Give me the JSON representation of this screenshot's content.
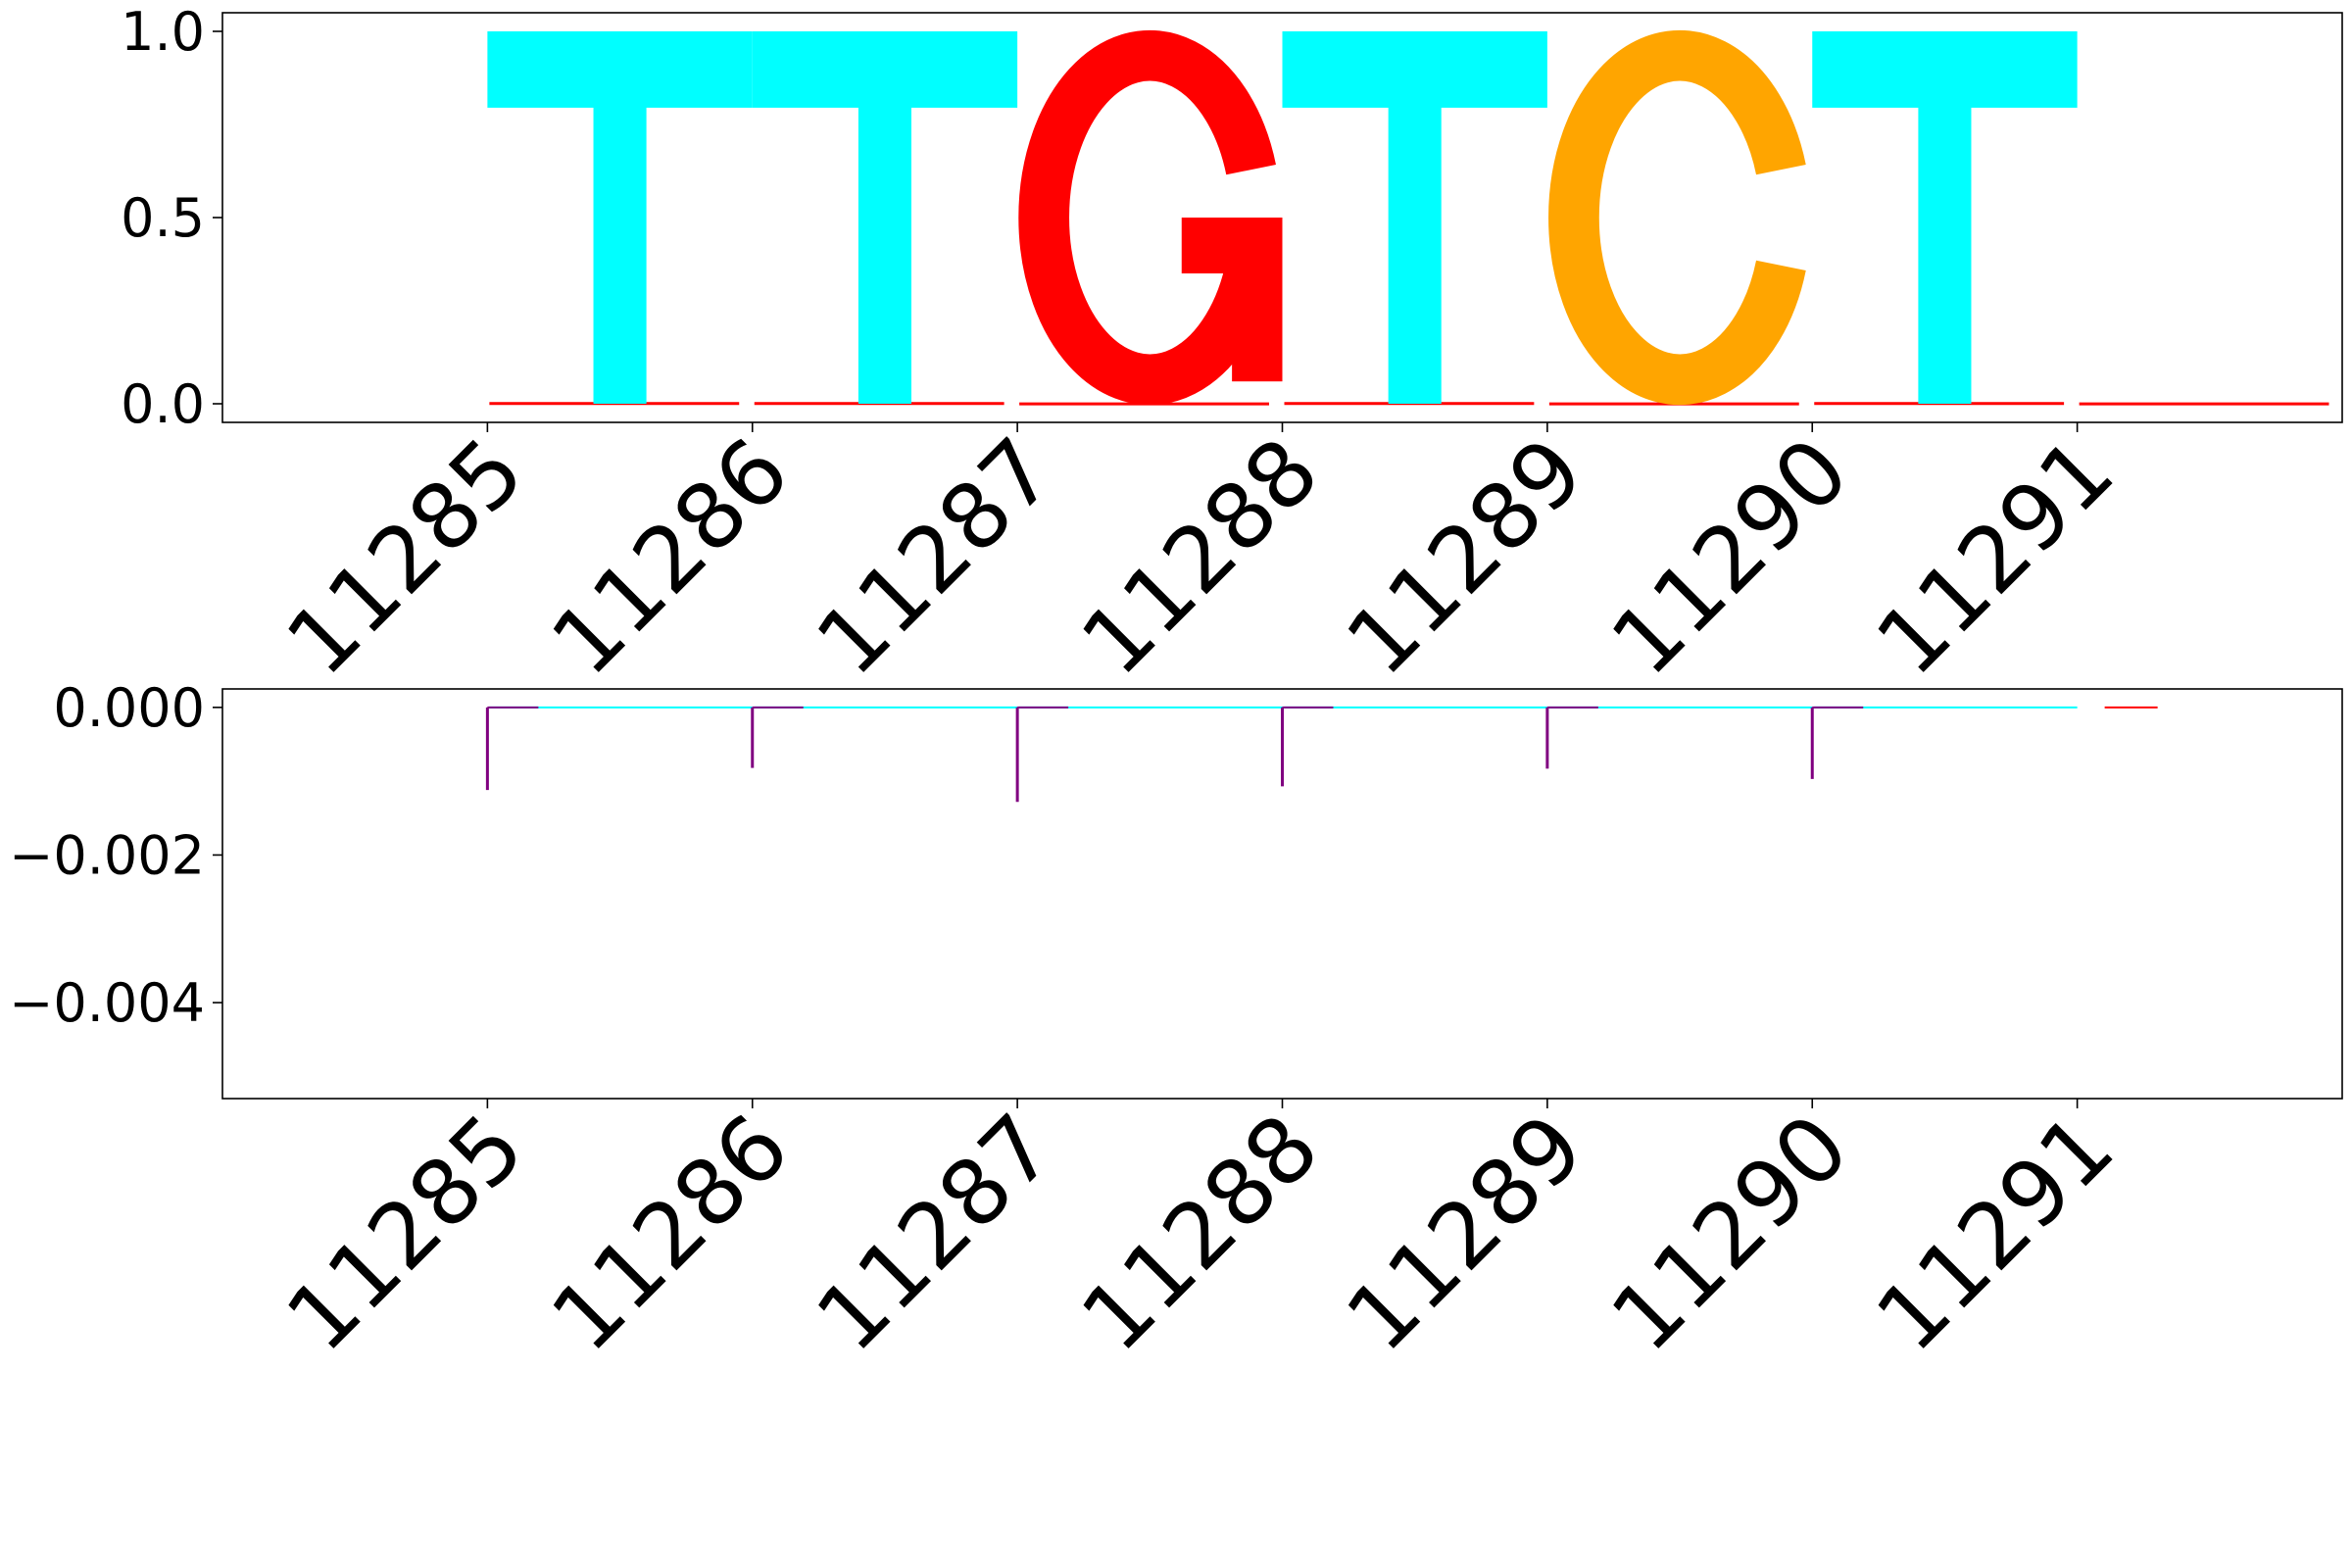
{
  "chart_data": [
    {
      "type": "sequence-logo",
      "title": "",
      "xlabel": "",
      "ylabel": "",
      "ylim": [
        -0.05,
        1.05
      ],
      "xlim": [
        11284,
        11292
      ],
      "x_ticks": [
        11285,
        11286,
        11287,
        11288,
        11289,
        11290,
        11291
      ],
      "y_ticks": [
        {
          "value": 0.0,
          "label": "0.0"
        },
        {
          "value": 0.5,
          "label": "0.5"
        },
        {
          "value": 1.0,
          "label": "1.0"
        }
      ],
      "letter_colors": {
        "A": "#008000",
        "C": "#ffa500",
        "G": "#ff0000",
        "T": "#00ffff"
      },
      "letters": [
        {
          "x": 11285,
          "letter": "T",
          "height": 1.0
        },
        {
          "x": 11286,
          "letter": "T",
          "height": 1.0
        },
        {
          "x": 11287,
          "letter": "G",
          "height": 1.0
        },
        {
          "x": 11288,
          "letter": "T",
          "height": 1.0
        },
        {
          "x": 11289,
          "letter": "C",
          "height": 1.0
        },
        {
          "x": 11290,
          "letter": "T",
          "height": 1.0
        }
      ],
      "baseline_traces": [
        {
          "x": 11285,
          "color": "#ff0000",
          "value": 0.002
        },
        {
          "x": 11286,
          "color": "#ff0000",
          "value": 0.002
        },
        {
          "x": 11287,
          "color": "#ff0000",
          "value": 0.001
        },
        {
          "x": 11288,
          "color": "#ff0000",
          "value": 0.002
        },
        {
          "x": 11289,
          "color": "#ff0000",
          "value": 0.001
        },
        {
          "x": 11290,
          "color": "#ff0000",
          "value": 0.002
        },
        {
          "x": 11291,
          "color": "#ff0000",
          "value": 0.001
        }
      ]
    },
    {
      "type": "bar",
      "title": "",
      "xlabel": "",
      "ylabel": "",
      "ylim": [
        -0.0053,
        0.00025
      ],
      "xlim": [
        11284,
        11292
      ],
      "x_ticks": [
        11285,
        11286,
        11287,
        11288,
        11289,
        11290,
        11291
      ],
      "y_ticks": [
        {
          "value": 0.0,
          "label": "0.000"
        },
        {
          "value": -0.002,
          "label": "−0.002"
        },
        {
          "value": -0.004,
          "label": "−0.004"
        }
      ],
      "bar_color": "#800080",
      "line_color": "#00ffff",
      "bars": [
        {
          "x": 11285,
          "value": -0.00112
        },
        {
          "x": 11286,
          "value": -0.00082
        },
        {
          "x": 11287,
          "value": -0.00128
        },
        {
          "x": 11288,
          "value": -0.00107
        },
        {
          "x": 11289,
          "value": -0.00083
        },
        {
          "x": 11290,
          "value": -0.00097
        },
        {
          "x": 11291,
          "value": 0.0
        }
      ]
    }
  ]
}
